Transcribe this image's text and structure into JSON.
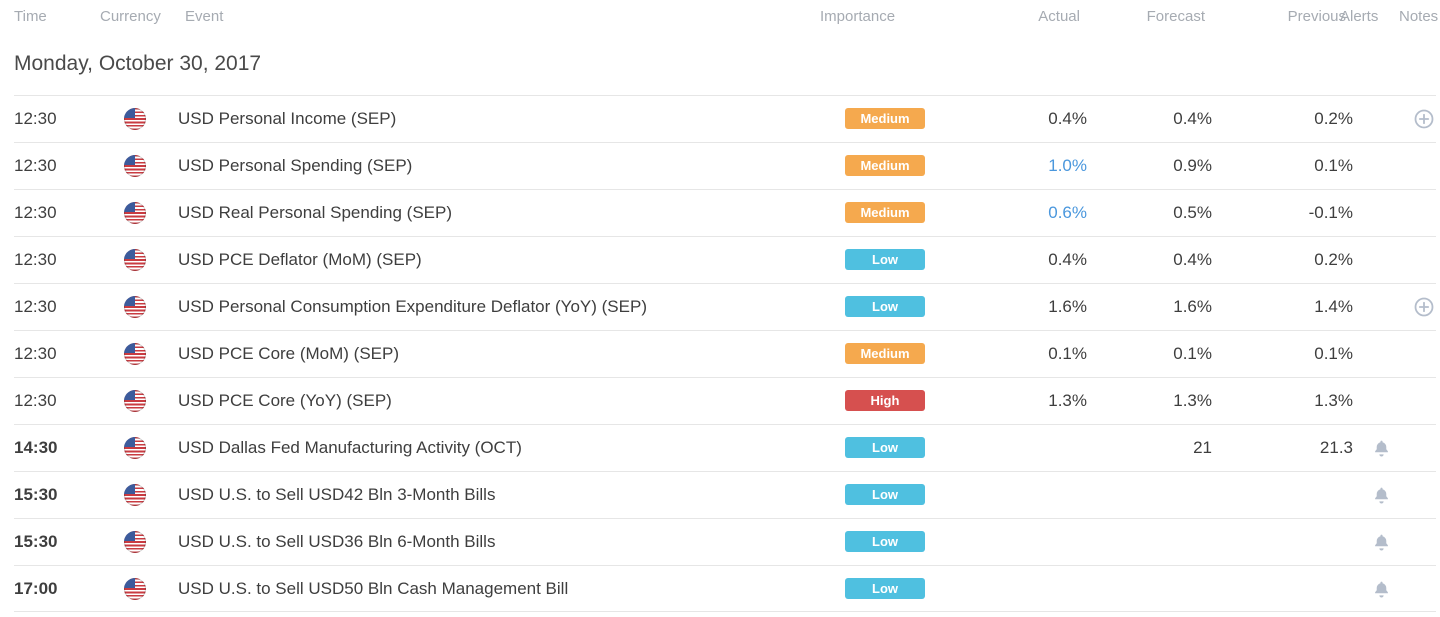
{
  "header": {
    "columns": [
      "Time",
      "Currency",
      "Event",
      "Importance",
      "Actual",
      "Forecast",
      "Previous",
      "Alerts",
      "Notes"
    ]
  },
  "date_header": "Monday, October 30, 2017",
  "rows": [
    {
      "time": "12:30",
      "bold": false,
      "currency": "USD",
      "event": "USD Personal Income (SEP)",
      "importance": "Medium",
      "actual": "0.4%",
      "actual_better": false,
      "forecast": "0.4%",
      "previous": "0.2%",
      "alert": false,
      "note": true
    },
    {
      "time": "12:30",
      "bold": false,
      "currency": "USD",
      "event": "USD Personal Spending (SEP)",
      "importance": "Medium",
      "actual": "1.0%",
      "actual_better": true,
      "forecast": "0.9%",
      "previous": "0.1%",
      "alert": false,
      "note": false
    },
    {
      "time": "12:30",
      "bold": false,
      "currency": "USD",
      "event": "USD Real Personal Spending (SEP)",
      "importance": "Medium",
      "actual": "0.6%",
      "actual_better": true,
      "forecast": "0.5%",
      "previous": "-0.1%",
      "alert": false,
      "note": false
    },
    {
      "time": "12:30",
      "bold": false,
      "currency": "USD",
      "event": "USD PCE Deflator (MoM) (SEP)",
      "importance": "Low",
      "actual": "0.4%",
      "actual_better": false,
      "forecast": "0.4%",
      "previous": "0.2%",
      "alert": false,
      "note": false
    },
    {
      "time": "12:30",
      "bold": false,
      "currency": "USD",
      "event": "USD Personal Consumption Expenditure Deflator (YoY) (SEP)",
      "importance": "Low",
      "actual": "1.6%",
      "actual_better": false,
      "forecast": "1.6%",
      "previous": "1.4%",
      "alert": false,
      "note": true
    },
    {
      "time": "12:30",
      "bold": false,
      "currency": "USD",
      "event": "USD PCE Core (MoM) (SEP)",
      "importance": "Medium",
      "actual": "0.1%",
      "actual_better": false,
      "forecast": "0.1%",
      "previous": "0.1%",
      "alert": false,
      "note": false
    },
    {
      "time": "12:30",
      "bold": false,
      "currency": "USD",
      "event": "USD PCE Core (YoY) (SEP)",
      "importance": "High",
      "actual": "1.3%",
      "actual_better": false,
      "forecast": "1.3%",
      "previous": "1.3%",
      "alert": false,
      "note": false
    },
    {
      "time": "14:30",
      "bold": true,
      "currency": "USD",
      "event": "USD Dallas Fed Manufacturing Activity (OCT)",
      "importance": "Low",
      "actual": "",
      "actual_better": false,
      "forecast": "21",
      "previous": "21.3",
      "alert": true,
      "note": false
    },
    {
      "time": "15:30",
      "bold": true,
      "currency": "USD",
      "event": "USD U.S. to Sell USD42 Bln 3-Month Bills",
      "importance": "Low",
      "actual": "",
      "actual_better": false,
      "forecast": "",
      "previous": "",
      "alert": true,
      "note": false
    },
    {
      "time": "15:30",
      "bold": true,
      "currency": "USD",
      "event": "USD U.S. to Sell USD36 Bln 6-Month Bills",
      "importance": "Low",
      "actual": "",
      "actual_better": false,
      "forecast": "",
      "previous": "",
      "alert": true,
      "note": false
    },
    {
      "time": "17:00",
      "bold": true,
      "currency": "USD",
      "event": "USD U.S. to Sell USD50 Bln Cash Management Bill",
      "importance": "Low",
      "actual": "",
      "actual_better": false,
      "forecast": "",
      "previous": "",
      "alert": true,
      "note": false
    }
  ],
  "importance_colors": {
    "Low": "#4fc0e0",
    "Medium": "#f5a94e",
    "High": "#d6504f"
  },
  "colors": {
    "actual_highlight": "#4a97dd",
    "icon_gray": "#b4bdcb",
    "header_text": "#a6abb2",
    "date_text": "#4a4a4a",
    "row_text": "#3e3e3e",
    "divider": "#e6e6e6",
    "flag_red": "#c93b41",
    "flag_blue": "#3c5b9c"
  }
}
